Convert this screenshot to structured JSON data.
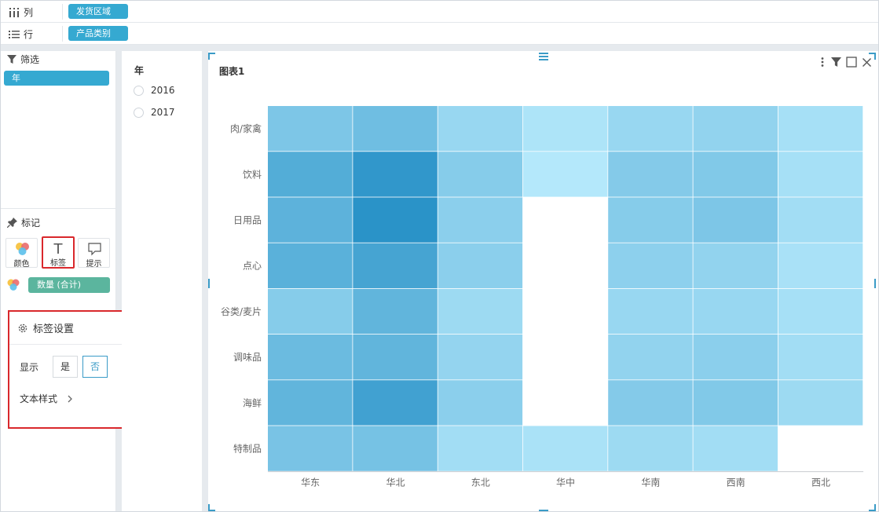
{
  "shelves": {
    "columns": {
      "label": "列",
      "field": "发货区域"
    },
    "rows": {
      "label": "行",
      "field": "产品类别"
    }
  },
  "filter_section": {
    "title": "筛选",
    "field": "年"
  },
  "marks_section": {
    "title": "标记",
    "buttons": [
      {
        "label": "颜色",
        "icon": "color-palette-icon"
      },
      {
        "label": "标签",
        "icon": "text-label-icon",
        "selected": true
      },
      {
        "label": "提示",
        "icon": "tooltip-icon"
      }
    ],
    "measure": "数量 (合计)"
  },
  "label_popup": {
    "title": "标签设置",
    "show_label": "显示",
    "yes": "是",
    "no": "否",
    "selected": "否",
    "text_style": "文本样式"
  },
  "year_filter": {
    "title": "年",
    "options": [
      "2016",
      "2017"
    ]
  },
  "chart": {
    "title": "图表1"
  },
  "colors": {
    "accent": "#35a9d1",
    "measure": "#5bb59e",
    "highlight": "#d9282c"
  },
  "chart_data": {
    "type": "heatmap",
    "x_categories": [
      "华东",
      "华北",
      "东北",
      "华中",
      "华南",
      "西南",
      "西北"
    ],
    "y_categories": [
      "肉/家禽",
      "饮料",
      "日用品",
      "点心",
      "谷类/麦片",
      "调味品",
      "海鲜",
      "特制品"
    ],
    "values": [
      [
        0.45,
        0.55,
        0.25,
        0.1,
        0.25,
        0.3,
        0.15
      ],
      [
        0.75,
        1.0,
        0.38,
        0.05,
        0.4,
        0.42,
        0.15
      ],
      [
        0.68,
        1.05,
        0.35,
        null,
        0.38,
        0.45,
        0.18
      ],
      [
        0.7,
        0.85,
        0.35,
        null,
        0.33,
        0.3,
        0.13
      ],
      [
        0.38,
        0.65,
        0.22,
        null,
        0.25,
        0.25,
        0.15
      ],
      [
        0.58,
        0.65,
        0.28,
        null,
        0.3,
        0.35,
        0.18
      ],
      [
        0.65,
        0.88,
        0.35,
        null,
        0.4,
        0.42,
        0.22
      ],
      [
        0.48,
        0.5,
        0.18,
        0.12,
        0.22,
        0.18,
        null
      ]
    ],
    "color_scale": [
      "#b4e8fb",
      "#2a93c8"
    ],
    "legend": "none"
  }
}
